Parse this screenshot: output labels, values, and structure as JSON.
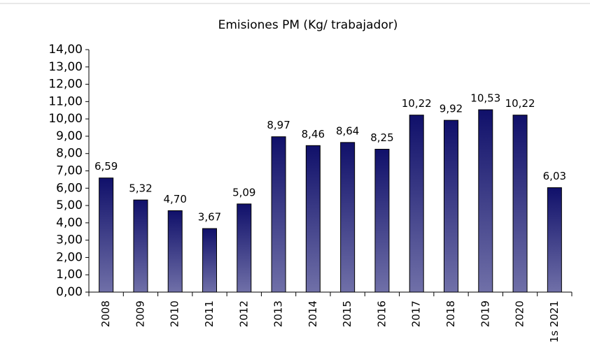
{
  "chart_data": {
    "type": "bar",
    "title": "Emisiones PM (Kg/ trabajador)",
    "categories": [
      "2008",
      "2009",
      "2010",
      "2011",
      "2012",
      "2013",
      "2014",
      "2015",
      "2016",
      "2017",
      "2018",
      "2019",
      "2020",
      "1s 2021"
    ],
    "values": [
      6.59,
      5.32,
      4.7,
      3.67,
      5.09,
      8.97,
      8.46,
      8.64,
      8.25,
      10.22,
      9.92,
      10.53,
      10.22,
      6.03
    ],
    "value_labels": [
      "6,59",
      "5,32",
      "4,70",
      "3,67",
      "5,09",
      "8,97",
      "8,46",
      "8,64",
      "8,25",
      "10,22",
      "9,92",
      "10,53",
      "10,22",
      "6,03"
    ],
    "color": "#10106a",
    "ylim": [
      0,
      14
    ],
    "yticks": [
      {
        "value": 0,
        "label": "0,00"
      },
      {
        "value": 1,
        "label": "1,00"
      },
      {
        "value": 2,
        "label": "2,00"
      },
      {
        "value": 3,
        "label": "3,00"
      },
      {
        "value": 4,
        "label": "4,00"
      },
      {
        "value": 5,
        "label": "5,00"
      },
      {
        "value": 6,
        "label": "6,00"
      },
      {
        "value": 7,
        "label": "7,00"
      },
      {
        "value": 8,
        "label": "8,00"
      },
      {
        "value": 9,
        "label": "9,00"
      },
      {
        "value": 10,
        "label": "10,00"
      },
      {
        "value": 11,
        "label": "11,00"
      },
      {
        "value": 12,
        "label": "12,00"
      },
      {
        "value": 13,
        "label": "13,00"
      },
      {
        "value": 14,
        "label": "14,00"
      }
    ],
    "grid": false
  }
}
